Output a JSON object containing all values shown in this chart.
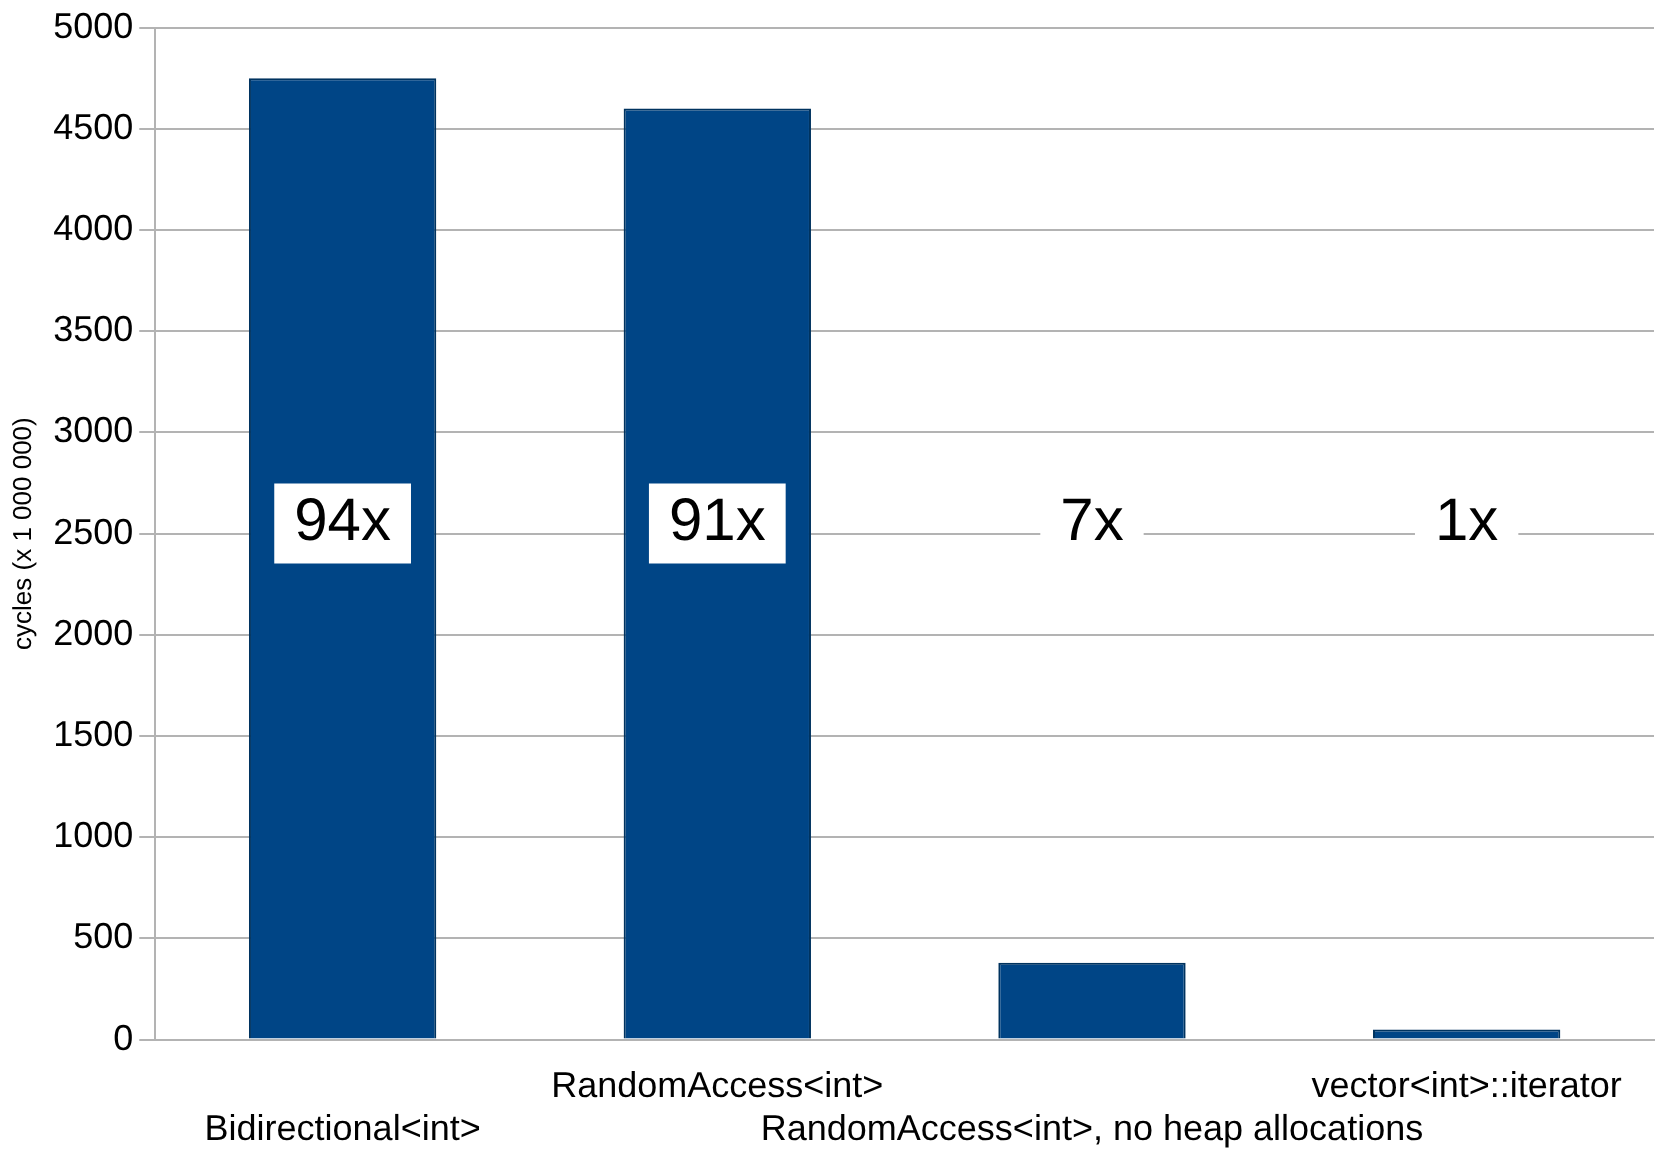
{
  "chart_data": {
    "type": "bar",
    "ylabel": "cycles (x 1 000 000)",
    "categories": [
      "Bidirectional<int>",
      "RandomAccess<int>",
      "RandomAccess<int>, no heap allocations",
      "vector<int>::iterator"
    ],
    "values": [
      4750,
      4600,
      380,
      50
    ],
    "color": "#004586",
    "ylim": [
      0,
      5000
    ],
    "yticks": [
      0,
      500,
      1000,
      1500,
      2000,
      2500,
      3000,
      3500,
      4000,
      4500,
      5000
    ],
    "grid": "y",
    "legend": false,
    "annotations": [
      "94x",
      "91x",
      "7x",
      "1x"
    ]
  }
}
